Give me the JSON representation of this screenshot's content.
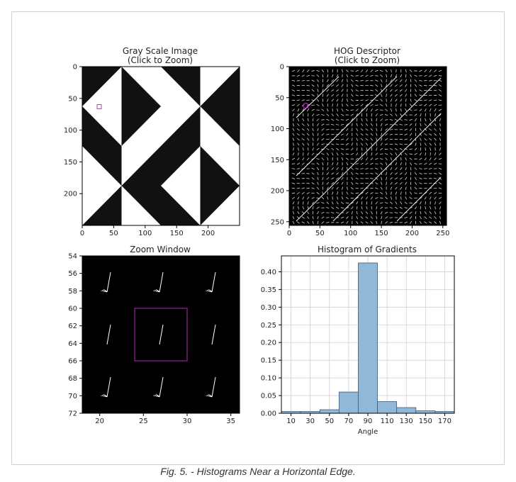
{
  "caption": "Fig. 5. - Histograms Near a Horizontal Edge.",
  "colors": {
    "bar_fill": "#92b8d8",
    "bar_edge": "#3c5a78",
    "marker": "#cc33cc",
    "zoom_box": "#8e1f8e"
  },
  "panels": {
    "gray": {
      "title1": "Gray Scale Image",
      "title2": "(Click to Zoom)",
      "xticks": [
        "0",
        "50",
        "100",
        "150",
        "200"
      ],
      "yticks": [
        "0",
        "50",
        "100",
        "150",
        "200"
      ],
      "xlim": [
        0,
        250
      ],
      "ylim": [
        0,
        250
      ],
      "marker": [
        27,
        63
      ]
    },
    "hog": {
      "title1": "HOG Descriptor",
      "title2": "(Click to Zoom)",
      "xticks": [
        "0",
        "50",
        "100",
        "150",
        "200",
        "250"
      ],
      "yticks": [
        "0",
        "50",
        "100",
        "150",
        "200",
        "250"
      ],
      "xlim": [
        0,
        256
      ],
      "ylim": [
        0,
        256
      ],
      "marker": [
        27,
        63
      ]
    },
    "zoom": {
      "title": "Zoom Window",
      "xticks": [
        "20",
        "25",
        "30",
        "35"
      ],
      "yticks": [
        "54",
        "56",
        "58",
        "60",
        "62",
        "64",
        "66",
        "68",
        "70",
        "72"
      ],
      "xlim": [
        18,
        36
      ],
      "ylim": [
        54,
        72
      ],
      "box": [
        24,
        30,
        60,
        66
      ]
    }
  },
  "chart_data": {
    "type": "bar",
    "title": "Histogram of Gradients",
    "xlabel": "Angle",
    "ylabel": "",
    "categories": [
      "10",
      "30",
      "50",
      "70",
      "90",
      "110",
      "130",
      "150",
      "170"
    ],
    "values": [
      0.005,
      0.005,
      0.01,
      0.06,
      0.425,
      0.033,
      0.016,
      0.007,
      0.005
    ],
    "yticks": [
      "0.00",
      "0.05",
      "0.10",
      "0.15",
      "0.20",
      "0.25",
      "0.30",
      "0.35",
      "0.40"
    ],
    "ylim": [
      0,
      0.445
    ],
    "grid": true
  }
}
